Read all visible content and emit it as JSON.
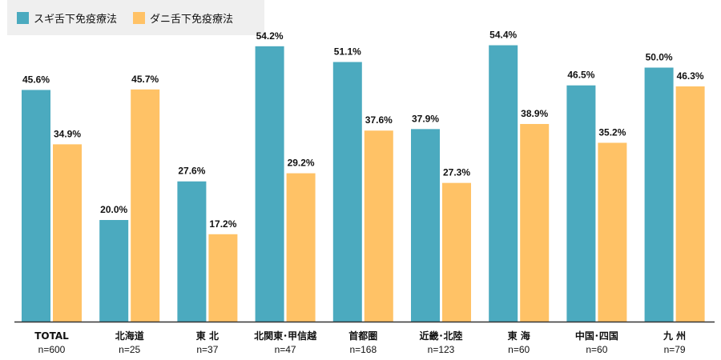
{
  "chart_data": {
    "type": "bar",
    "categories": [
      "TOTAL",
      "北海道",
      "東 北",
      "北関東･甲信越",
      "首都圏",
      "近畿･北陸",
      "東 海",
      "中国･四国",
      "九 州"
    ],
    "sample_sizes": [
      "n=600",
      "n=25",
      "n=37",
      "n=47",
      "n=168",
      "n=123",
      "n=60",
      "n=60",
      "n=79"
    ],
    "series": [
      {
        "name": "スギ舌下免疫療法",
        "color": "#4BAABF",
        "values": [
          45.6,
          20.0,
          27.6,
          54.2,
          51.1,
          37.9,
          54.4,
          46.5,
          50.0
        ],
        "labels": [
          "45.6%",
          "20.0%",
          "27.6%",
          "54.2%",
          "51.1%",
          "37.9%",
          "54.4%",
          "46.5%",
          "50.0%"
        ]
      },
      {
        "name": "ダニ舌下免疫療法",
        "color": "#FFC266",
        "values": [
          34.9,
          45.7,
          17.2,
          29.2,
          37.6,
          27.3,
          38.9,
          35.2,
          46.3
        ],
        "labels": [
          "34.9%",
          "45.7%",
          "17.2%",
          "29.2%",
          "37.6%",
          "27.3%",
          "38.9%",
          "35.2%",
          "46.3%"
        ]
      }
    ],
    "ylim": [
      0,
      60
    ],
    "grid": false,
    "legend_position": "top-left"
  }
}
